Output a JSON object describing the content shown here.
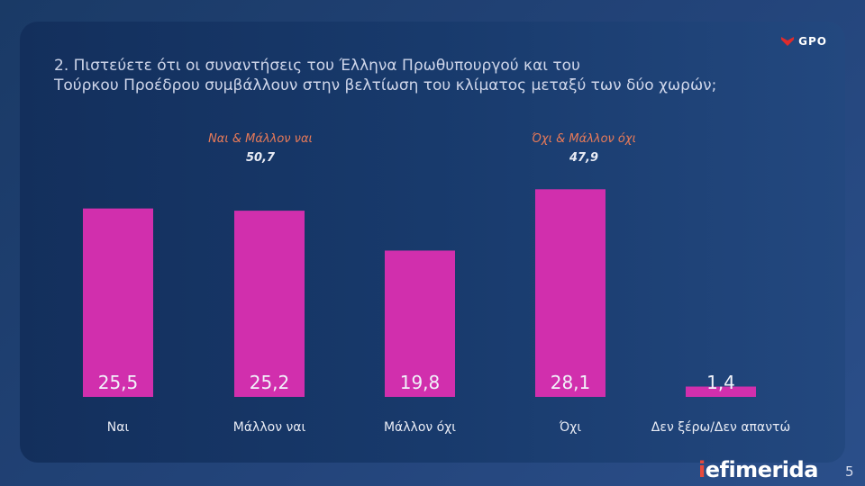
{
  "header": {
    "title_line1": "2. Πιστεύετε ότι οι συναντήσεις του Έλληνα Πρωθυπουργού και του",
    "title_line2": "Τούρκου Προέδρου συμβάλλουν στην βελτίωση του κλίματος μεταξύ των δύο χωρών;",
    "logo_text": "GPO"
  },
  "groups": [
    {
      "label": "Ναι & Μάλλον ναι",
      "value": "50,7"
    },
    {
      "label": "Όχι & Μάλλον όχι",
      "value": "47,9"
    }
  ],
  "chart_data": {
    "type": "bar",
    "title": "2. Πιστεύετε ότι οι συναντήσεις του Έλληνα Πρωθυπουργού και του Τούρκου Προέδρου συμβάλλουν στην βελτίωση του κλίματος μεταξύ των δύο χωρών;",
    "categories": [
      "Ναι",
      "Μάλλον ναι",
      "Μάλλον όχι",
      "Όχι",
      "Δεν ξέρω/Δεν απαντώ"
    ],
    "values": [
      25.5,
      25.2,
      19.8,
      28.1,
      1.4
    ],
    "value_labels": [
      "25,5",
      "25,2",
      "19,8",
      "28,1",
      "1,4"
    ],
    "xlabel": "",
    "ylabel": "",
    "ylim": [
      0,
      30
    ],
    "grid": false,
    "bar_color": "#d12fad",
    "label_color": "#f1f3fa"
  },
  "footer": {
    "brand_i": "i",
    "brand_rest": "efimerida",
    "page_number": "5"
  }
}
